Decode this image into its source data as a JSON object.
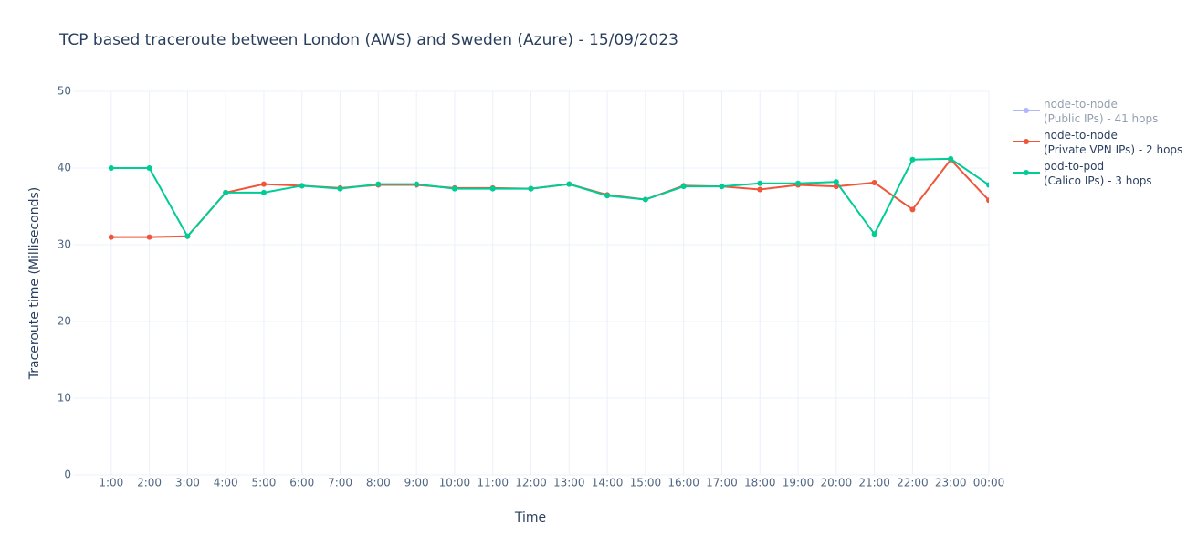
{
  "chart_data": {
    "type": "line",
    "title": "TCP based traceroute between London (AWS) and Sweden (Azure)   -   15/09/2023",
    "x_label": "Time",
    "y_label": "Traceroute time (Milliseconds)",
    "categories": [
      "1:00",
      "2:00",
      "3:00",
      "4:00",
      "5:00",
      "6:00",
      "7:00",
      "8:00",
      "9:00",
      "10:00",
      "11:00",
      "12:00",
      "13:00",
      "14:00",
      "15:00",
      "16:00",
      "17:00",
      "18:00",
      "19:00",
      "20:00",
      "21:00",
      "22:00",
      "23:00",
      "00:00"
    ],
    "ylim": [
      0,
      50
    ],
    "yticks": [
      0,
      10,
      20,
      30,
      40,
      50
    ],
    "grid": true,
    "legend": "right",
    "series": [
      {
        "name": "node-to-node\n(Public IPs) - 41 hops",
        "color": "#636efa",
        "visible": "legendonly",
        "values": [
          null,
          null,
          null,
          null,
          null,
          null,
          null,
          null,
          null,
          null,
          null,
          null,
          null,
          null,
          null,
          null,
          null,
          null,
          null,
          null,
          null,
          null,
          null,
          null
        ]
      },
      {
        "name": "node-to-node\n(Private VPN IPs) - 2 hops",
        "color": "#ef553b",
        "values": [
          31,
          31,
          31.1,
          36.8,
          37.9,
          37.7,
          37.4,
          37.8,
          37.8,
          37.4,
          37.4,
          37.3,
          37.9,
          36.5,
          35.9,
          37.7,
          37.6,
          37.2,
          37.8,
          37.6,
          38.1,
          34.6,
          41.1,
          35.8
        ]
      },
      {
        "name": "pod-to-pod\n(Calico IPs) - 3 hops",
        "color": "#00cc96",
        "values": [
          40,
          40,
          31.1,
          36.8,
          36.8,
          37.7,
          37.3,
          37.9,
          37.9,
          37.3,
          37.3,
          37.3,
          37.9,
          36.4,
          35.9,
          37.6,
          37.6,
          38,
          38,
          38.2,
          31.4,
          41.1,
          41.2,
          37.8
        ]
      }
    ]
  }
}
